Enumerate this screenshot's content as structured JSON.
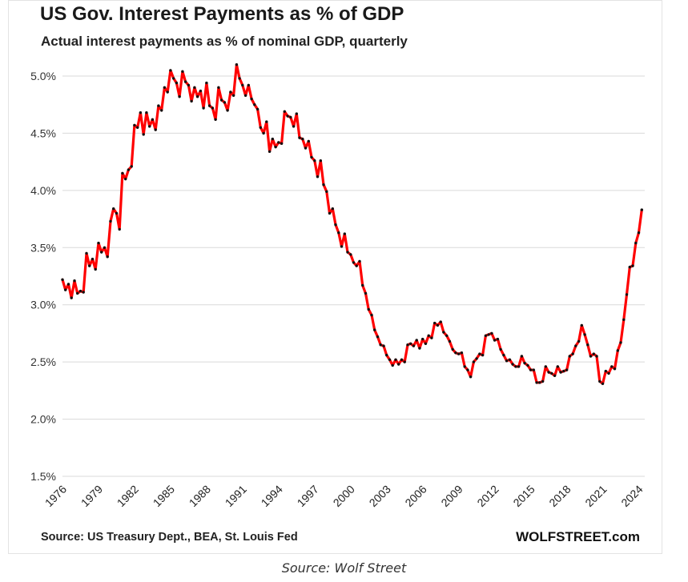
{
  "header": {
    "title": "US Gov. Interest Payments as % of GDP",
    "subtitle": "Actual interest payments as % of nominal GDP, quarterly"
  },
  "footer": {
    "source": "Source: US Treasury Dept., BEA, St. Louis Fed",
    "brand": "WOLFSTREET.com",
    "caption": "Source: Wolf Street"
  },
  "colors": {
    "line": "#ff0000",
    "marker": "#111111",
    "grid": "#d9d9d9"
  },
  "chart_data": {
    "type": "line",
    "title": "US Gov. Interest Payments as % of GDP",
    "subtitle": "Actual interest payments as % of nominal GDP, quarterly",
    "xlabel": "",
    "ylabel": "",
    "x_ticks": [
      "1976",
      "1979",
      "1982",
      "1985",
      "1988",
      "1991",
      "1994",
      "1997",
      "2000",
      "2003",
      "2006",
      "2009",
      "2012",
      "2015",
      "2018",
      "2021",
      "2024"
    ],
    "y_ticks": [
      "1.5%",
      "2.0%",
      "2.5%",
      "3.0%",
      "3.5%",
      "4.0%",
      "4.5%",
      "5.0%"
    ],
    "xlim": [
      1976,
      2024.5
    ],
    "ylim": [
      1.5,
      5.0
    ],
    "grid": true,
    "legend": "none",
    "markers": true,
    "series": [
      {
        "name": "",
        "points": [
          [
            1976.0,
            3.22
          ],
          [
            1976.25,
            3.13
          ],
          [
            1976.5,
            3.18
          ],
          [
            1976.75,
            3.06
          ],
          [
            1977.0,
            3.21
          ],
          [
            1977.25,
            3.1
          ],
          [
            1977.5,
            3.12
          ],
          [
            1977.75,
            3.11
          ],
          [
            1978.0,
            3.45
          ],
          [
            1978.25,
            3.34
          ],
          [
            1978.5,
            3.4
          ],
          [
            1978.75,
            3.31
          ],
          [
            1979.0,
            3.54
          ],
          [
            1979.25,
            3.46
          ],
          [
            1979.5,
            3.5
          ],
          [
            1979.75,
            3.42
          ],
          [
            1980.0,
            3.73
          ],
          [
            1980.25,
            3.84
          ],
          [
            1980.5,
            3.8
          ],
          [
            1980.75,
            3.66
          ],
          [
            1981.0,
            4.15
          ],
          [
            1981.25,
            4.1
          ],
          [
            1981.5,
            4.18
          ],
          [
            1981.75,
            4.21
          ],
          [
            1982.0,
            4.57
          ],
          [
            1982.25,
            4.55
          ],
          [
            1982.5,
            4.68
          ],
          [
            1982.75,
            4.49
          ],
          [
            1983.0,
            4.68
          ],
          [
            1983.25,
            4.56
          ],
          [
            1983.5,
            4.62
          ],
          [
            1983.75,
            4.53
          ],
          [
            1984.0,
            4.74
          ],
          [
            1984.25,
            4.7
          ],
          [
            1984.5,
            4.9
          ],
          [
            1984.75,
            4.86
          ],
          [
            1985.0,
            5.05
          ],
          [
            1985.25,
            4.98
          ],
          [
            1985.5,
            4.94
          ],
          [
            1985.75,
            4.82
          ],
          [
            1986.0,
            5.04
          ],
          [
            1986.25,
            4.95
          ],
          [
            1986.5,
            4.92
          ],
          [
            1986.75,
            4.78
          ],
          [
            1987.0,
            4.9
          ],
          [
            1987.25,
            4.82
          ],
          [
            1987.5,
            4.87
          ],
          [
            1987.75,
            4.72
          ],
          [
            1988.0,
            4.94
          ],
          [
            1988.25,
            4.74
          ],
          [
            1988.5,
            4.72
          ],
          [
            1988.75,
            4.62
          ],
          [
            1989.0,
            4.9
          ],
          [
            1989.25,
            4.79
          ],
          [
            1989.5,
            4.77
          ],
          [
            1989.75,
            4.7
          ],
          [
            1990.0,
            4.86
          ],
          [
            1990.25,
            4.83
          ],
          [
            1990.5,
            5.1
          ],
          [
            1990.75,
            4.98
          ],
          [
            1991.0,
            4.92
          ],
          [
            1991.25,
            4.83
          ],
          [
            1991.5,
            4.92
          ],
          [
            1991.75,
            4.8
          ],
          [
            1992.0,
            4.75
          ],
          [
            1992.25,
            4.71
          ],
          [
            1992.5,
            4.55
          ],
          [
            1992.75,
            4.5
          ],
          [
            1993.0,
            4.6
          ],
          [
            1993.25,
            4.34
          ],
          [
            1993.5,
            4.45
          ],
          [
            1993.75,
            4.38
          ],
          [
            1994.0,
            4.42
          ],
          [
            1994.25,
            4.41
          ],
          [
            1994.5,
            4.69
          ],
          [
            1994.75,
            4.65
          ],
          [
            1995.0,
            4.64
          ],
          [
            1995.25,
            4.56
          ],
          [
            1995.5,
            4.67
          ],
          [
            1995.75,
            4.46
          ],
          [
            1996.0,
            4.45
          ],
          [
            1996.25,
            4.37
          ],
          [
            1996.5,
            4.43
          ],
          [
            1996.75,
            4.29
          ],
          [
            1997.0,
            4.26
          ],
          [
            1997.25,
            4.12
          ],
          [
            1997.5,
            4.26
          ],
          [
            1997.75,
            4.05
          ],
          [
            1998.0,
            3.99
          ],
          [
            1998.25,
            3.8
          ],
          [
            1998.5,
            3.84
          ],
          [
            1998.75,
            3.7
          ],
          [
            1999.0,
            3.63
          ],
          [
            1999.25,
            3.51
          ],
          [
            1999.5,
            3.62
          ],
          [
            1999.75,
            3.46
          ],
          [
            2000.0,
            3.44
          ],
          [
            2000.25,
            3.37
          ],
          [
            2000.5,
            3.34
          ],
          [
            2000.75,
            3.38
          ],
          [
            2001.0,
            3.17
          ],
          [
            2001.25,
            3.1
          ],
          [
            2001.5,
            2.96
          ],
          [
            2001.75,
            2.91
          ],
          [
            2002.0,
            2.78
          ],
          [
            2002.25,
            2.72
          ],
          [
            2002.5,
            2.65
          ],
          [
            2002.75,
            2.64
          ],
          [
            2003.0,
            2.56
          ],
          [
            2003.25,
            2.52
          ],
          [
            2003.5,
            2.47
          ],
          [
            2003.75,
            2.52
          ],
          [
            2004.0,
            2.48
          ],
          [
            2004.25,
            2.52
          ],
          [
            2004.5,
            2.5
          ],
          [
            2004.75,
            2.65
          ],
          [
            2005.0,
            2.66
          ],
          [
            2005.25,
            2.64
          ],
          [
            2005.5,
            2.69
          ],
          [
            2005.75,
            2.62
          ],
          [
            2006.0,
            2.7
          ],
          [
            2006.25,
            2.66
          ],
          [
            2006.5,
            2.73
          ],
          [
            2006.75,
            2.71
          ],
          [
            2007.0,
            2.84
          ],
          [
            2007.25,
            2.82
          ],
          [
            2007.5,
            2.85
          ],
          [
            2007.75,
            2.76
          ],
          [
            2008.0,
            2.73
          ],
          [
            2008.25,
            2.68
          ],
          [
            2008.5,
            2.61
          ],
          [
            2008.75,
            2.58
          ],
          [
            2009.0,
            2.57
          ],
          [
            2009.25,
            2.58
          ],
          [
            2009.5,
            2.46
          ],
          [
            2009.75,
            2.43
          ],
          [
            2010.0,
            2.37
          ],
          [
            2010.25,
            2.5
          ],
          [
            2010.5,
            2.53
          ],
          [
            2010.75,
            2.57
          ],
          [
            2011.0,
            2.56
          ],
          [
            2011.25,
            2.73
          ],
          [
            2011.5,
            2.74
          ],
          [
            2011.75,
            2.75
          ],
          [
            2012.0,
            2.69
          ],
          [
            2012.25,
            2.7
          ],
          [
            2012.5,
            2.61
          ],
          [
            2012.75,
            2.56
          ],
          [
            2013.0,
            2.51
          ],
          [
            2013.25,
            2.52
          ],
          [
            2013.5,
            2.48
          ],
          [
            2013.75,
            2.46
          ],
          [
            2014.0,
            2.46
          ],
          [
            2014.25,
            2.55
          ],
          [
            2014.5,
            2.49
          ],
          [
            2014.75,
            2.47
          ],
          [
            2015.0,
            2.43
          ],
          [
            2015.25,
            2.43
          ],
          [
            2015.5,
            2.32
          ],
          [
            2015.75,
            2.32
          ],
          [
            2016.0,
            2.33
          ],
          [
            2016.25,
            2.46
          ],
          [
            2016.5,
            2.41
          ],
          [
            2016.75,
            2.4
          ],
          [
            2017.0,
            2.38
          ],
          [
            2017.25,
            2.46
          ],
          [
            2017.5,
            2.41
          ],
          [
            2017.75,
            2.42
          ],
          [
            2018.0,
            2.43
          ],
          [
            2018.25,
            2.55
          ],
          [
            2018.5,
            2.57
          ],
          [
            2018.75,
            2.64
          ],
          [
            2019.0,
            2.68
          ],
          [
            2019.25,
            2.82
          ],
          [
            2019.5,
            2.74
          ],
          [
            2019.75,
            2.65
          ],
          [
            2020.0,
            2.55
          ],
          [
            2020.25,
            2.57
          ],
          [
            2020.5,
            2.55
          ],
          [
            2020.75,
            2.33
          ],
          [
            2021.0,
            2.31
          ],
          [
            2021.25,
            2.42
          ],
          [
            2021.5,
            2.4
          ],
          [
            2021.75,
            2.46
          ],
          [
            2022.0,
            2.44
          ],
          [
            2022.25,
            2.6
          ],
          [
            2022.5,
            2.67
          ],
          [
            2022.75,
            2.87
          ],
          [
            2023.0,
            3.09
          ],
          [
            2023.25,
            3.33
          ],
          [
            2023.5,
            3.34
          ],
          [
            2023.75,
            3.54
          ],
          [
            2024.0,
            3.63
          ],
          [
            2024.25,
            3.83
          ]
        ]
      }
    ]
  }
}
